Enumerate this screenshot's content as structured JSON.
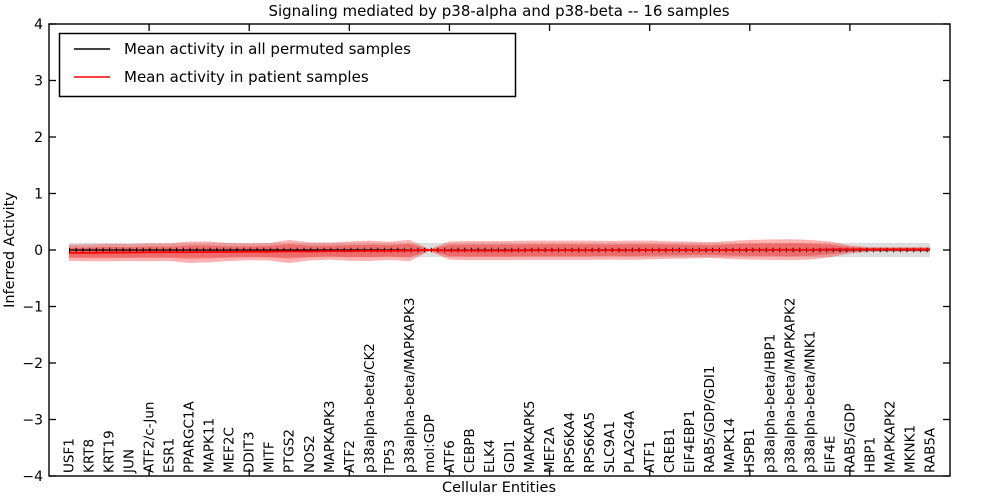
{
  "figure": {
    "title": "Signaling mediated by p38-alpha and p38-beta -- 16 samples",
    "xlabel": "Cellular Entities",
    "ylabel": "Inferred Activity",
    "background_color": "#ffffff",
    "frame_color": "#000000"
  },
  "legend": {
    "position": "upper left",
    "entries": [
      {
        "label": "Mean activity in all permuted samples",
        "color": "#000000"
      },
      {
        "label": "Mean activity in patient samples",
        "color": "#ff0000"
      }
    ]
  },
  "chart_data": {
    "type": "line",
    "title": "Signaling mediated by p38-alpha and p38-beta -- 16 samples",
    "xlabel": "Cellular Entities",
    "ylabel": "Inferred Activity",
    "ylim": [
      -4,
      4
    ],
    "xlim": [
      0,
      45
    ],
    "yticks": [
      4,
      3,
      2,
      1,
      0,
      -1,
      -2,
      -3,
      -4
    ],
    "xticks": [
      5,
      10,
      15,
      20,
      25,
      30,
      35,
      40
    ],
    "grid": false,
    "legend_position": "upper left",
    "categories": [
      "USF1",
      "KRT8",
      "KRT19",
      "JUN",
      "ATF2/c-Jun",
      "ESR1",
      "PPARGC1A",
      "MAPK11",
      "MEF2C",
      "DDIT3",
      "MITF",
      "PTGS2",
      "NOS2",
      "MAPKAPK3",
      "ATF2",
      "p38alpha-beta/CK2",
      "TP53",
      "p38alpha-beta/MAPKAPK3",
      "mol:GDP",
      "ATF6",
      "CEBPB",
      "ELK4",
      "GDI1",
      "MAPKAPK5",
      "MEF2A",
      "RPS6KA4",
      "RPS6KA5",
      "SLC9A1",
      "PLA2G4A",
      "ATF1",
      "CREB1",
      "EIF4EBP1",
      "RAB5/GDP/GDI1",
      "MAPK14",
      "HSPB1",
      "p38alpha-beta/HBP1",
      "p38alpha-beta/MAPKAPK2",
      "p38alpha-beta/MNK1",
      "EIF4E",
      "RAB5/GDP",
      "HBP1",
      "MAPKAPK2",
      "MKNK1",
      "RAB5A"
    ],
    "series": [
      {
        "name": "Mean activity in all permuted samples",
        "color": "#000000",
        "line_style": "solid with small vertical tick marks",
        "values": [
          0,
          0,
          0,
          0,
          0,
          0,
          0,
          0,
          0,
          0,
          0,
          0,
          0,
          0,
          0,
          0,
          0,
          0,
          0,
          0,
          0,
          0,
          0,
          0,
          0,
          0,
          0,
          0,
          0,
          0,
          0,
          0,
          0,
          0,
          0,
          0,
          0,
          0,
          0,
          0,
          0,
          0,
          0,
          0
        ],
        "band_halfwidth": [
          0.125,
          0.125,
          0.125,
          0.125,
          0.125,
          0.125,
          0.125,
          0.125,
          0.125,
          0.125,
          0.125,
          0.125,
          0.125,
          0.125,
          0.125,
          0.125,
          0.125,
          0.125,
          0.125,
          0.125,
          0.125,
          0.125,
          0.125,
          0.125,
          0.125,
          0.125,
          0.125,
          0.125,
          0.125,
          0.125,
          0.125,
          0.125,
          0.125,
          0.125,
          0.125,
          0.125,
          0.125,
          0.125,
          0.125,
          0.125,
          0.125,
          0.125,
          0.125,
          0.125
        ],
        "band_color": "rgba(120,120,120,0.25)"
      },
      {
        "name": "Mean activity in patient samples",
        "color": "#ff0000",
        "line_style": "solid",
        "values": [
          -0.05,
          -0.05,
          -0.045,
          -0.045,
          -0.04,
          -0.04,
          -0.04,
          -0.035,
          -0.035,
          -0.03,
          -0.03,
          -0.025,
          -0.025,
          -0.02,
          -0.02,
          -0.015,
          -0.015,
          -0.01,
          0,
          -0.01,
          -0.01,
          -0.01,
          -0.01,
          -0.005,
          -0.005,
          -0.005,
          -0.005,
          -0.005,
          -0.005,
          0,
          0,
          0,
          0,
          0,
          0.005,
          0.005,
          0.005,
          0.005,
          0.01,
          0.01,
          0.01,
          0.01,
          0.01,
          0.01
        ],
        "band_outer_halfwidth": [
          0.145,
          0.15,
          0.155,
          0.15,
          0.16,
          0.155,
          0.19,
          0.185,
          0.16,
          0.15,
          0.155,
          0.205,
          0.16,
          0.15,
          0.17,
          0.18,
          0.16,
          0.19,
          0.015,
          0.16,
          0.17,
          0.17,
          0.17,
          0.17,
          0.17,
          0.17,
          0.17,
          0.165,
          0.17,
          0.165,
          0.155,
          0.15,
          0.14,
          0.16,
          0.175,
          0.18,
          0.185,
          0.175,
          0.14,
          0.07,
          0.04,
          0.04,
          0.04,
          0.04
        ],
        "band_inner_halfwidth": [
          0.09,
          0.095,
          0.1,
          0.095,
          0.1,
          0.1,
          0.12,
          0.115,
          0.1,
          0.095,
          0.1,
          0.13,
          0.1,
          0.095,
          0.105,
          0.11,
          0.1,
          0.12,
          0.01,
          0.1,
          0.105,
          0.105,
          0.105,
          0.105,
          0.105,
          0.105,
          0.105,
          0.1,
          0.105,
          0.1,
          0.095,
          0.09,
          0.085,
          0.1,
          0.11,
          0.11,
          0.115,
          0.11,
          0.085,
          0.045,
          0.025,
          0.025,
          0.025,
          0.025
        ],
        "band_color": "rgba(255,0,0,0.3)"
      }
    ]
  }
}
